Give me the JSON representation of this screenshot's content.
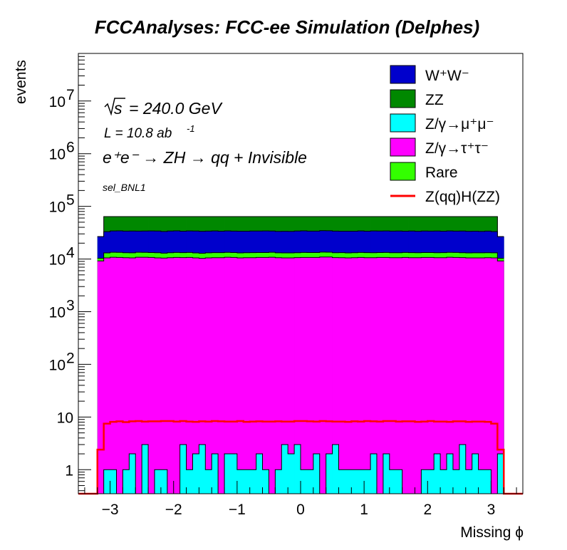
{
  "chart_data": {
    "type": "bar",
    "title": "FCCAnalyses: FCC-ee Simulation (Delphes)",
    "xlabel": "Missing ϕ",
    "ylabel": "events",
    "xlim": [
      -3.5,
      3.5
    ],
    "ylim": [
      0.35,
      80000000
    ],
    "yscale": "log",
    "stacked": true,
    "xticks": [
      -3,
      -2,
      -1,
      0,
      1,
      2,
      3
    ],
    "xtick_labels": [
      "−3",
      "−2",
      "−1",
      "0",
      "1",
      "2",
      "3"
    ],
    "yticks": [
      {
        "value": 1,
        "base": "1",
        "exp": ""
      },
      {
        "value": 10,
        "base": "10",
        "exp": ""
      },
      {
        "value": 100,
        "base": "10",
        "exp": "2"
      },
      {
        "value": 1000,
        "base": "10",
        "exp": "3"
      },
      {
        "value": 10000,
        "base": "10",
        "exp": "4"
      },
      {
        "value": 100000,
        "base": "10",
        "exp": "5"
      },
      {
        "value": 1000000,
        "base": "10",
        "exp": "6"
      },
      {
        "value": 10000000,
        "base": "10",
        "exp": "7"
      }
    ],
    "grid": false,
    "legend_position": "top-right",
    "bins": {
      "low": -3.2,
      "high": 3.2,
      "n": 64
    },
    "annotations": {
      "sqrt_s": "= 240.0 GeV",
      "lumi_text": "L = 10.8 ab",
      "lumi_exp": "-1",
      "process": "e⁺e⁻ → ZH → qq + Invisible",
      "selection": "sel_BNL1"
    },
    "series": [
      {
        "name": "Z/γ→μ⁺μ⁻",
        "color": "#00ffff",
        "values": [
          0,
          1,
          1,
          0,
          1,
          2,
          0,
          3,
          0,
          1,
          1,
          0,
          0,
          3,
          1,
          2,
          3,
          1,
          2,
          0,
          2,
          2,
          1,
          1,
          1,
          2,
          1,
          0,
          1,
          3,
          2,
          3,
          1,
          1,
          2,
          0,
          2,
          3,
          1,
          1,
          1,
          1,
          1,
          2,
          0,
          2,
          1,
          1,
          0,
          0,
          0,
          1,
          1,
          2,
          1,
          2,
          1,
          3,
          1,
          2,
          1,
          1,
          0,
          2
        ]
      },
      {
        "name": "Z/γ→τ⁺τ⁻",
        "color": "#ff00ff",
        "values": [
          9200,
          10500,
          10800,
          10700,
          10600,
          10500,
          10800,
          10800,
          10700,
          10500,
          10400,
          10600,
          10700,
          10600,
          10700,
          10500,
          10300,
          10500,
          10600,
          10600,
          10800,
          10700,
          10500,
          10600,
          10600,
          10700,
          10700,
          10800,
          10600,
          10500,
          10500,
          10600,
          10700,
          10700,
          10700,
          10900,
          10900,
          10600,
          10600,
          10500,
          10600,
          10700,
          10600,
          10600,
          10700,
          10700,
          10600,
          10600,
          10700,
          10600,
          10600,
          10700,
          10700,
          10600,
          10600,
          10800,
          10700,
          10600,
          10500,
          10500,
          10500,
          10600,
          10500,
          9200
        ]
      },
      {
        "name": "Rare",
        "color": "#33ff00",
        "values": [
          1150,
          2550,
          2600,
          2650,
          2550,
          2600,
          2620,
          2560,
          2580,
          2650,
          2520,
          2560,
          2620,
          2610,
          2590,
          2540,
          2560,
          2620,
          2600,
          2610,
          2590,
          2560,
          2570,
          2580,
          2610,
          2580,
          2560,
          2600,
          2530,
          2570,
          2550,
          2570,
          2600,
          2580,
          2580,
          2610,
          2560,
          2550,
          2590,
          2570,
          2580,
          2600,
          2610,
          2560,
          2570,
          2610,
          2580,
          2560,
          2590,
          2590,
          2560,
          2560,
          2540,
          2570,
          2620,
          2590,
          2630,
          2580,
          2560,
          2590,
          2610,
          2540,
          2590,
          1150
        ]
      },
      {
        "name": "W⁺W⁻",
        "color": "#0000cc",
        "values": [
          16300,
          20100,
          20700,
          20900,
          20800,
          20900,
          20500,
          20600,
          20900,
          20900,
          20500,
          20800,
          20900,
          20600,
          20800,
          21000,
          20800,
          20800,
          21000,
          20500,
          20800,
          20600,
          20700,
          20600,
          20800,
          20800,
          20900,
          20600,
          20400,
          20600,
          20500,
          20900,
          21000,
          20600,
          20600,
          21000,
          20900,
          20700,
          20600,
          20700,
          20600,
          20800,
          20500,
          21000,
          20700,
          20900,
          20700,
          20900,
          20500,
          20800,
          20500,
          20800,
          20600,
          20800,
          20500,
          20700,
          20500,
          20800,
          20600,
          20600,
          20400,
          20800,
          20100,
          16300
        ]
      },
      {
        "name": "ZZ",
        "color": "#008800",
        "values": [
          -1,
          32000,
          32000,
          32000,
          32000,
          32000,
          32000,
          32000,
          32000,
          32000,
          32000,
          32000,
          32000,
          32000,
          32000,
          32000,
          32000,
          32000,
          32000,
          32000,
          32000,
          32000,
          32000,
          32000,
          32000,
          32000,
          32000,
          32000,
          32000,
          32000,
          32000,
          32000,
          32000,
          32000,
          32000,
          32000,
          32000,
          32000,
          32000,
          32000,
          32000,
          32000,
          32000,
          32000,
          32000,
          32000,
          32000,
          32000,
          32000,
          32000,
          32000,
          32000,
          32000,
          32000,
          32000,
          32000,
          32000,
          32000,
          32000,
          32000,
          32000,
          32000,
          32000,
          -1
        ]
      }
    ],
    "signal": {
      "name": "Z(qq)H(ZZ)",
      "color": "#ff0000",
      "values": [
        2.4,
        7.5,
        8.1,
        8.3,
        8.0,
        8.3,
        8.4,
        8.2,
        8.3,
        8.3,
        8.4,
        8.4,
        8.2,
        8.4,
        8.2,
        8.1,
        8.3,
        8.2,
        8.4,
        8.3,
        8.2,
        8.2,
        8.4,
        8.1,
        8.2,
        8.3,
        8.2,
        8.2,
        8.3,
        8.2,
        8.2,
        8.4,
        8.4,
        8.3,
        8.2,
        8.4,
        8.3,
        8.2,
        8.2,
        8.1,
        8.3,
        8.2,
        8.4,
        8.3,
        8.2,
        8.4,
        8.4,
        8.2,
        8.3,
        8.3,
        8.1,
        8.2,
        8.4,
        8.2,
        8.2,
        8.1,
        8.3,
        8.3,
        8.1,
        8.2,
        8.2,
        8.1,
        7.5,
        2.4
      ]
    },
    "legend": [
      "W⁺W⁻",
      "ZZ",
      "Z/γ→μ⁺μ⁻",
      "Z/γ→τ⁺τ⁻",
      "Rare",
      "Z(qq)H(ZZ)"
    ]
  }
}
